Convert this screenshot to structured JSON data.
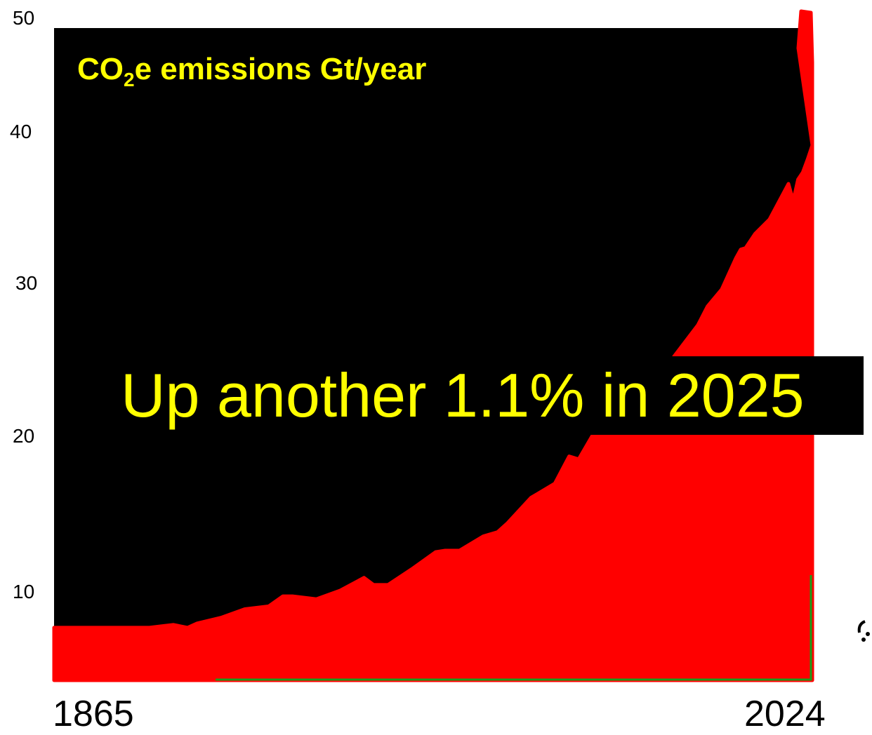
{
  "chart_data": {
    "type": "area",
    "title_main": "CO",
    "title_sub": "2",
    "title_rest": "e emissions Gt/year",
    "xlabel": "",
    "ylabel": "",
    "x_tick_labels": [
      "1865",
      "2024"
    ],
    "y_ticks": [
      "50",
      "40",
      "30",
      "20",
      "10"
    ],
    "xlim": [
      1865,
      2024
    ],
    "ylim": [
      4,
      50
    ],
    "grid": false,
    "annotation": "Up another 1.1% in 2025",
    "colors": {
      "plot_background": "#000000",
      "area_fill": "#ff0000",
      "baseline_line": "#1a9e1a",
      "text": "#ffff00"
    },
    "series": [
      {
        "x": [
          1865,
          1870,
          1875,
          1878,
          1880,
          1885,
          1890,
          1893,
          1895,
          1900,
          1905,
          1910,
          1913,
          1915,
          1920,
          1925,
          1930,
          1932,
          1935,
          1940,
          1945,
          1947,
          1950,
          1955,
          1958,
          1960,
          1965,
          1970,
          1973,
          1975,
          1979,
          1980,
          1983,
          1985,
          1990,
          1992,
          1995,
          2000,
          2002,
          2005,
          2008,
          2009,
          2010,
          2012,
          2015,
          2019,
          2020,
          2021,
          2022,
          2023,
          2024
        ],
        "y": [
          7.4,
          7.4,
          7.4,
          7.4,
          7.4,
          7.4,
          7.6,
          7.4,
          7.7,
          8.1,
          8.7,
          8.9,
          9.6,
          9.6,
          9.4,
          10,
          10.9,
          10.4,
          10.4,
          11.5,
          12.7,
          12.8,
          12.8,
          13.8,
          14.1,
          14.7,
          16.5,
          17.5,
          19.4,
          19.2,
          21.5,
          21.5,
          21.0,
          22.0,
          24.0,
          24.6,
          26.4,
          28.6,
          29.9,
          31.1,
          33.3,
          33.9,
          34.0,
          35.0,
          36.0,
          38.5,
          37.3,
          38.8,
          39.3,
          40.2,
          41.2
        ]
      }
    ]
  }
}
